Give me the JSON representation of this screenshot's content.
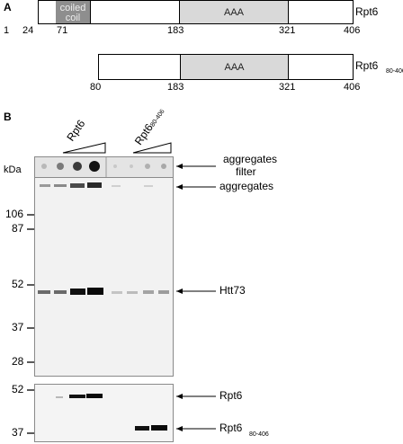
{
  "panel_a": {
    "label": "A",
    "full": {
      "name": "Rpt6",
      "coil_label_line1": "coiled",
      "coil_label_line2": "coil",
      "aaa_label": "AAA",
      "ticks": [
        "1",
        "24",
        "71",
        "183",
        "321",
        "406"
      ]
    },
    "truncated": {
      "name": "Rpt6",
      "name_sub": "80-406",
      "aaa_label": "AAA",
      "ticks": [
        "80",
        "183",
        "321",
        "406"
      ]
    }
  },
  "panel_b": {
    "label": "B",
    "lane_group_1": "Rpt6",
    "lane_group_2_name": "Rpt6",
    "lane_group_2_sub": "80-406",
    "kda_label": "kDa",
    "annotations": {
      "aggregates_filter_line1": "aggregates",
      "aggregates_filter_line2": "filter",
      "aggregates": "aggregates",
      "htt73": "Htt73",
      "rpt6": "Rpt6",
      "rpt6_trunc_name": "Rpt6",
      "rpt6_trunc_sub": "80-406"
    },
    "markers_main": [
      "106",
      "87",
      "52",
      "37",
      "28"
    ],
    "markers_lower": [
      "52",
      "37"
    ]
  }
}
